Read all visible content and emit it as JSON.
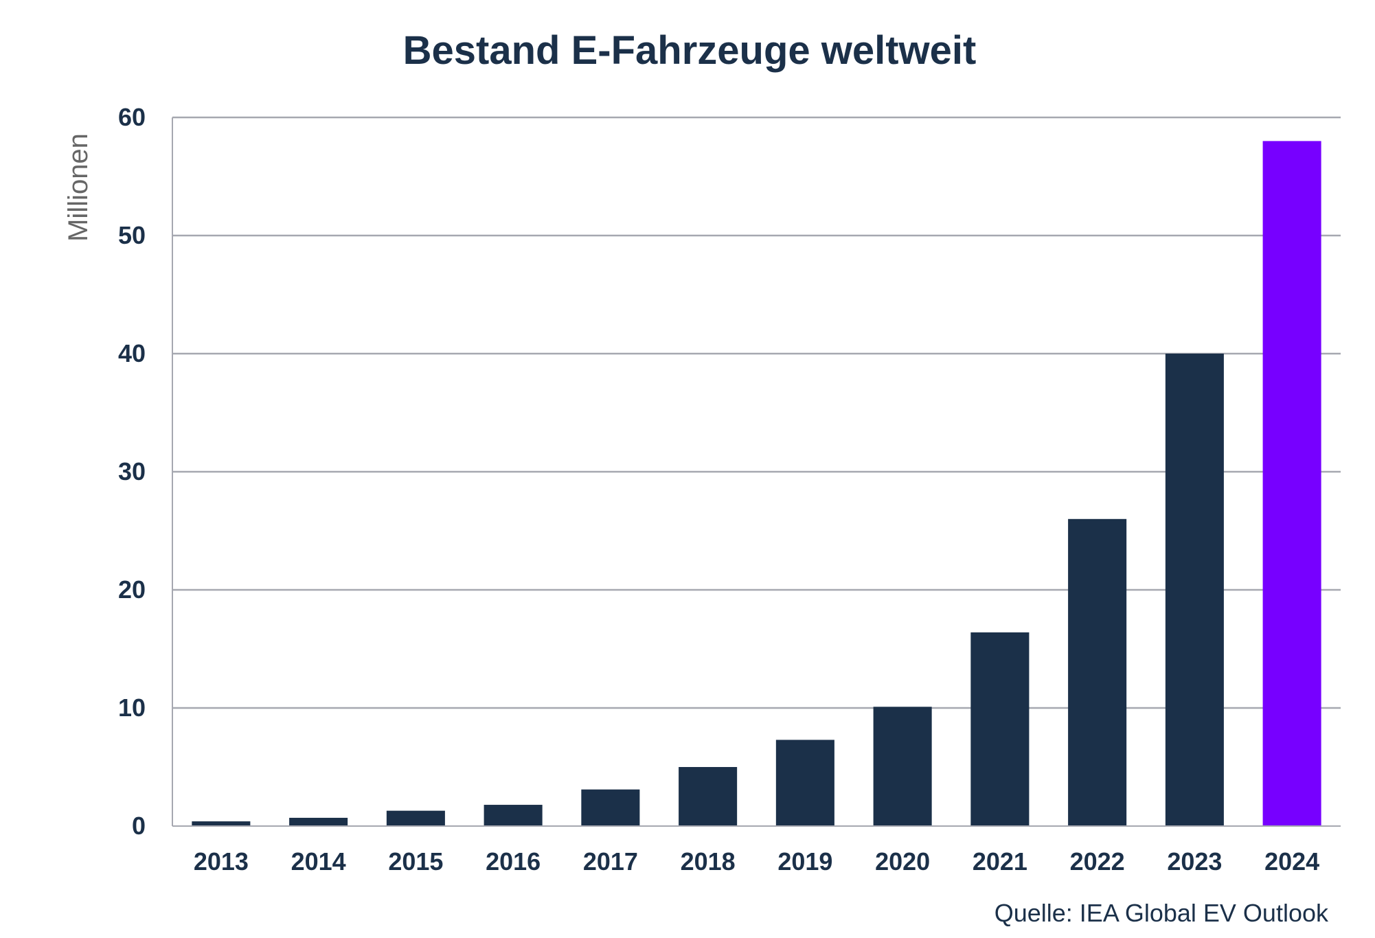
{
  "chart_data": {
    "type": "bar",
    "title": "Bestand E-Fahrzeuge weltweit",
    "ylabel": "Millionen",
    "xlabel": "",
    "source": "Quelle: IEA Global EV Outlook",
    "categories": [
      "2013",
      "2014",
      "2015",
      "2016",
      "2017",
      "2018",
      "2019",
      "2020",
      "2021",
      "2022",
      "2023",
      "2024"
    ],
    "values": [
      0.4,
      0.7,
      1.3,
      1.8,
      3.1,
      5.0,
      7.3,
      10.1,
      16.4,
      26.0,
      40.0,
      58.0
    ],
    "highlight_index": 11,
    "ylim": [
      0,
      60
    ],
    "yticks": [
      0,
      10,
      20,
      30,
      40,
      50,
      60
    ],
    "grid": true,
    "legend": "none",
    "colors": {
      "bar": "#1b3049",
      "highlight": "#7700ff",
      "title": "#1b3049",
      "tick_text": "#1b3049",
      "axis_label": "#666666",
      "grid": "#a6a8b0"
    }
  }
}
